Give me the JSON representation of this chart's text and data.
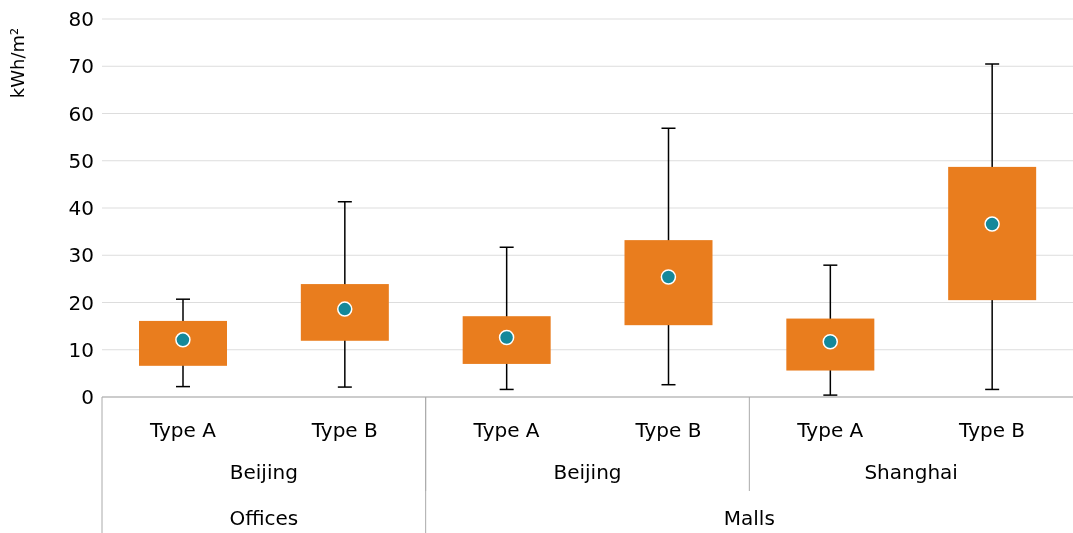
{
  "chart_data": {
    "type": "box",
    "ylabel": "kWh/m²",
    "categories": [
      "Type A",
      "Type B",
      "Type A",
      "Type B",
      "Type A",
      "Type B"
    ],
    "color": "#e97d1e",
    "boxes": [
      {
        "low": 2.2,
        "q1": 6.6,
        "q3": 16.1,
        "high": 20.7,
        "mean": 12.1
      },
      {
        "low": 2.1,
        "q1": 11.9,
        "q3": 23.9,
        "high": 41.3,
        "mean": 18.6
      },
      {
        "low": 1.6,
        "q1": 7.0,
        "q3": 17.1,
        "high": 31.7,
        "mean": 12.6
      },
      {
        "low": 2.6,
        "q1": 15.2,
        "q3": 33.2,
        "high": 56.9,
        "mean": 25.4
      },
      {
        "low": 0.4,
        "q1": 5.6,
        "q3": 16.6,
        "high": 27.9,
        "mean": 11.7
      },
      {
        "low": 1.6,
        "q1": 20.5,
        "q3": 48.7,
        "high": 70.5,
        "mean": 36.6
      }
    ],
    "annotations": [
      "Beijing",
      "Beijing",
      "Shanghai",
      "Offices",
      "Malls"
    ],
    "ylim": [
      0,
      80
    ],
    "yticks": [
      0,
      10,
      20,
      30,
      40,
      50,
      60,
      70,
      80
    ],
    "grid": "y"
  }
}
